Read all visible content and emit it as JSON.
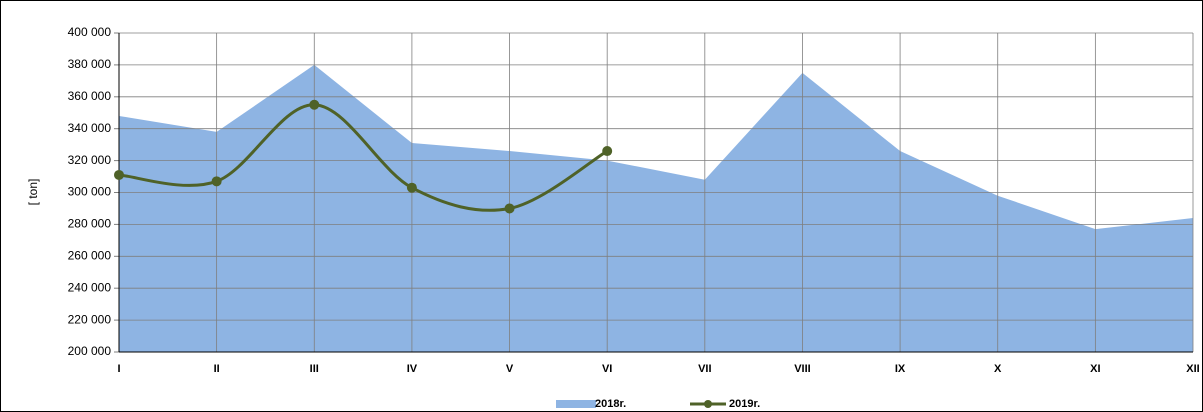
{
  "chart_data": {
    "type": "area-line",
    "y_label": "[ ton]",
    "categories": [
      "I",
      "II",
      "III",
      "IV",
      "V",
      "VI",
      "VII",
      "VIII",
      "IX",
      "X",
      "XI",
      "XII"
    ],
    "series": [
      {
        "name": "2018r.",
        "type": "area",
        "color": "#8eb4e3",
        "values": [
          348000,
          338000,
          380000,
          331000,
          326000,
          320000,
          308000,
          375000,
          326000,
          298000,
          277000,
          284000
        ]
      },
      {
        "name": "2019r.",
        "type": "line",
        "color": "#4f6228",
        "values": [
          311000,
          307000,
          355000,
          303000,
          290000,
          326000,
          null,
          null,
          null,
          null,
          null,
          null
        ]
      }
    ],
    "ylim": [
      200000,
      400000
    ],
    "yticks": [
      {
        "value": 200000,
        "label": "200 000"
      },
      {
        "value": 220000,
        "label": "220 000"
      },
      {
        "value": 240000,
        "label": "240 000"
      },
      {
        "value": 260000,
        "label": "260 000"
      },
      {
        "value": 280000,
        "label": "280 000"
      },
      {
        "value": 300000,
        "label": "300 000"
      },
      {
        "value": 320000,
        "label": "320 000"
      },
      {
        "value": 340000,
        "label": "340 000"
      },
      {
        "value": 360000,
        "label": "360 000"
      },
      {
        "value": 380000,
        "label": "380 000"
      },
      {
        "value": 400000,
        "label": "400 000"
      }
    ],
    "grid": true
  }
}
